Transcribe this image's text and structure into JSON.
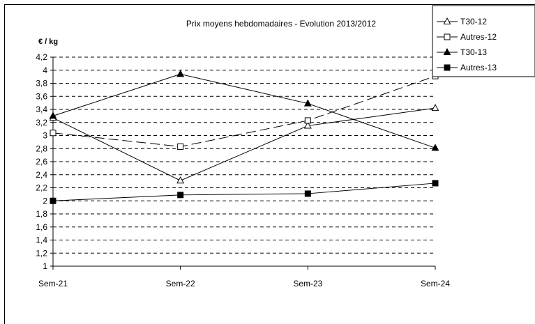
{
  "chart_data": {
    "type": "line",
    "title": "Prix moyens hebdomadaires - Evolution  2013/2012",
    "ylabel": "€ / kg",
    "xlabel": "",
    "categories": [
      "Sem-21",
      "Sem-22",
      "Sem-23",
      "Sem-24"
    ],
    "ylim": [
      1,
      4.2
    ],
    "yticks": [
      "1",
      "1,2",
      "1,4",
      "1,6",
      "1,8",
      "2",
      "2,2",
      "2,4",
      "2,6",
      "2,8",
      "3",
      "3,2",
      "3,4",
      "3,6",
      "3,8",
      "4",
      "4,2"
    ],
    "grid": "horizontal dashed",
    "legend_position": "top-right",
    "series": [
      {
        "name": "T30-12",
        "values": [
          3.27,
          2.31,
          3.15,
          3.42
        ],
        "marker": "triangle-open",
        "dash": "solid"
      },
      {
        "name": "Autres-12",
        "values": [
          3.04,
          2.83,
          3.23,
          3.91
        ],
        "marker": "square-open",
        "dash": "dashed"
      },
      {
        "name": "T30-13",
        "values": [
          3.3,
          3.94,
          3.49,
          2.81
        ],
        "marker": "triangle-filled",
        "dash": "solid"
      },
      {
        "name": "Autres-13",
        "values": [
          2.0,
          2.09,
          2.11,
          2.27
        ],
        "marker": "square-filled",
        "dash": "solid"
      }
    ]
  }
}
